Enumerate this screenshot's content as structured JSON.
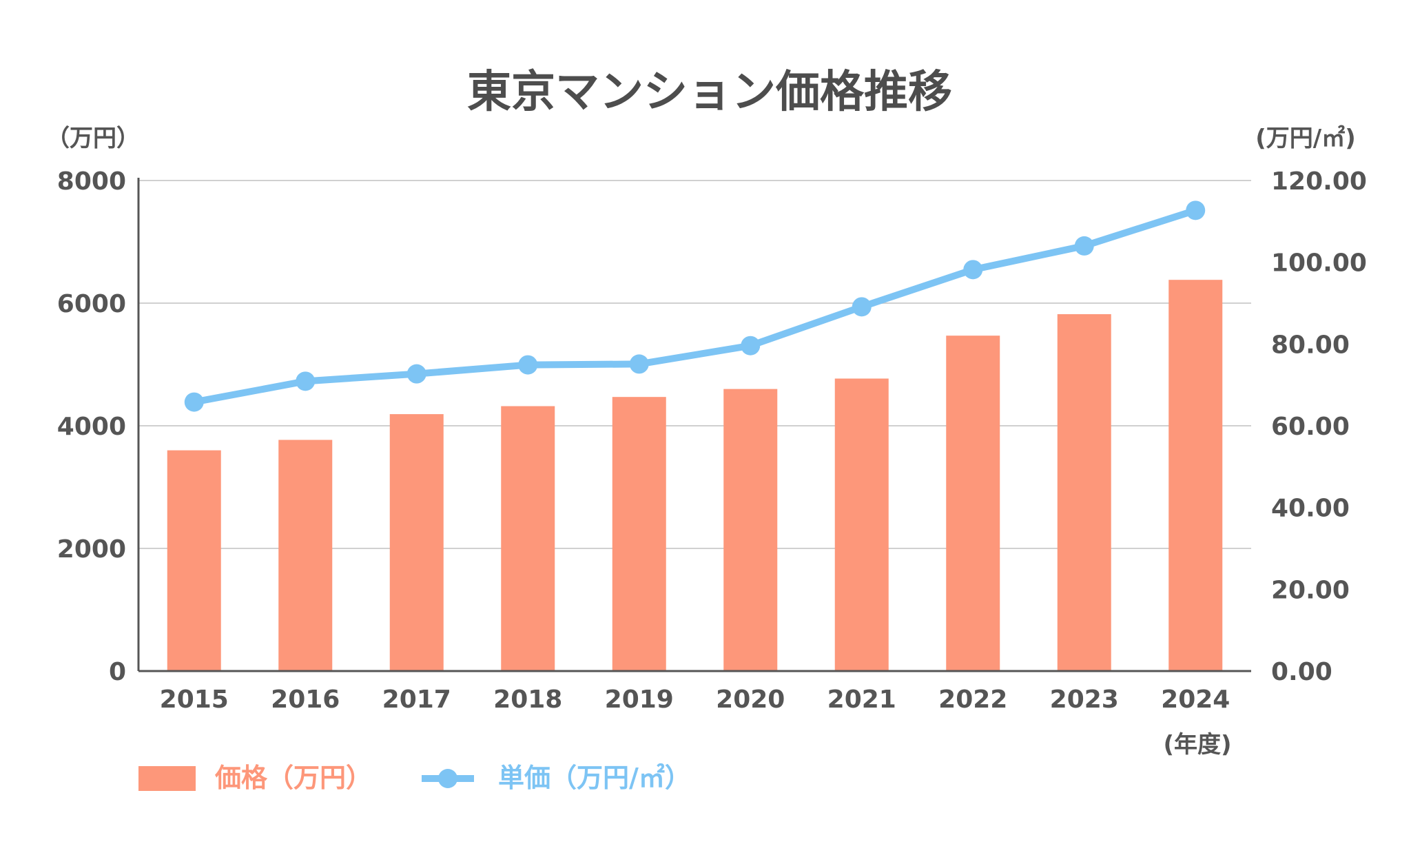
{
  "chart_data": {
    "type": "bar+line",
    "title": "東京マンション価格推移",
    "categories": [
      "2015",
      "2016",
      "2017",
      "2018",
      "2019",
      "2020",
      "2021",
      "2022",
      "2023",
      "2024"
    ],
    "xlabel": "(年度)",
    "y_left": {
      "label": "（万円）",
      "range": [
        0,
        8000
      ],
      "ticks": [
        "0",
        "2000",
        "4000",
        "6000",
        "8000"
      ]
    },
    "y_right": {
      "label": "(万円/㎡)",
      "range": [
        0,
        120
      ],
      "ticks": [
        "0.00",
        "20.00",
        "40.00",
        "60.00",
        "80.00",
        "100.00",
        "120.00"
      ]
    },
    "grid": true,
    "legend_position": "bottom-left",
    "series": [
      {
        "name": "価格（万円）",
        "type": "bar",
        "axis": "left",
        "color": "#FD977A",
        "values": [
          3600,
          3770,
          4190,
          4320,
          4470,
          4600,
          4770,
          5470,
          5820,
          6380
        ]
      },
      {
        "name": "単価（万円/㎡）",
        "type": "line",
        "axis": "right",
        "color": "#7DC4F4",
        "values": [
          65.8,
          70.9,
          72.7,
          74.9,
          75.1,
          79.6,
          89.1,
          98.2,
          104.0,
          112.7
        ]
      }
    ]
  }
}
